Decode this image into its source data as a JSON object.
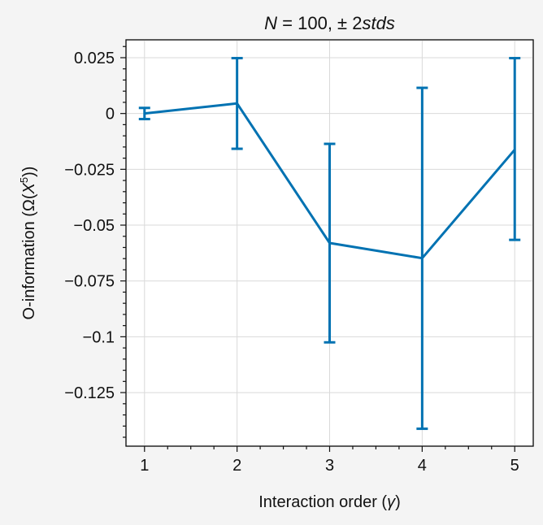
{
  "chart_data": {
    "type": "line",
    "title": "N = 100,  ± 2stds",
    "title_parts": {
      "var": "N",
      "eq": " = 100,  ± 2",
      "suffix": "stds"
    },
    "xlabel": "Interaction order (γ)",
    "xlabel_parts": {
      "main": "Interaction order (",
      "sym": "γ",
      "close": ")"
    },
    "ylabel": "O-information (Ω(X⁵))",
    "ylabel_parts": {
      "main": "O-information (Ω(",
      "sym": "X",
      "sup": "5",
      "close": "))"
    },
    "x": [
      1,
      2,
      3,
      4,
      5
    ],
    "x_ticks": [
      1,
      2,
      3,
      4,
      5
    ],
    "y_ticks": [
      0.025,
      0,
      -0.025,
      -0.05,
      -0.075,
      -0.1,
      -0.125
    ],
    "y_tick_labels": [
      "0.025",
      "0",
      "−0.025",
      "−0.05",
      "−0.075",
      "−0.1",
      "−0.125"
    ],
    "xlim": [
      0.8,
      5.2
    ],
    "ylim": [
      -0.149,
      0.033
    ],
    "grid": true,
    "series": [
      {
        "values": [
          0.0,
          0.0045,
          -0.058,
          -0.0648,
          -0.0162
        ],
        "err_low": [
          -0.0025,
          -0.0158,
          -0.1025,
          -0.1412,
          -0.0566
        ],
        "err_high": [
          0.0025,
          0.0248,
          -0.0136,
          0.0115,
          0.0248
        ],
        "color": "#0072b2"
      }
    ]
  }
}
